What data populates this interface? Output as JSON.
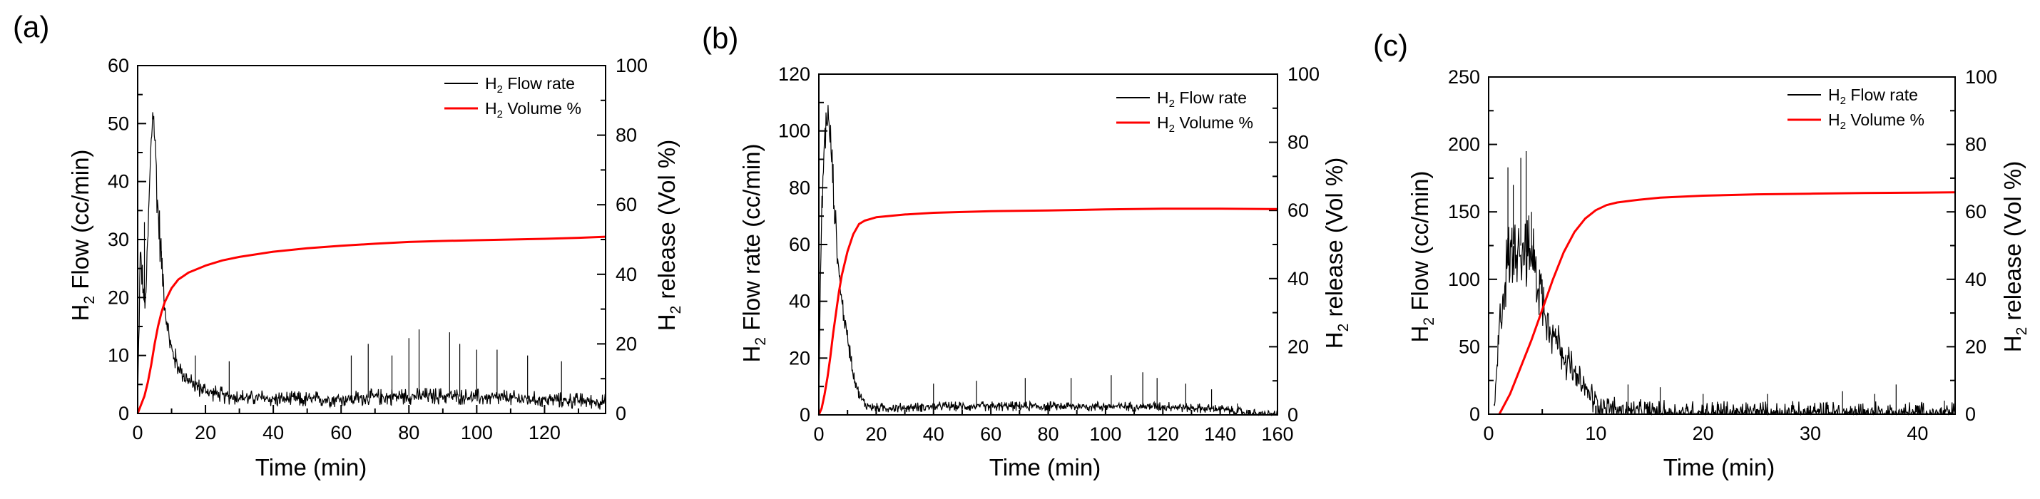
{
  "chart_data": [
    {
      "type": "line",
      "panel_label": "(a)",
      "xlabel": "Time (min)",
      "ylabel": {
        "main": "H",
        "sub": "2",
        "rest": " Flow (cc/min)"
      },
      "y2label": {
        "main": "H",
        "sub": "2",
        "rest": " release (Vol %)"
      },
      "xlim": [
        0,
        138
      ],
      "ylim": [
        0,
        60
      ],
      "y2lim": [
        0,
        100
      ],
      "xticks": [
        0,
        20,
        40,
        60,
        80,
        100,
        120
      ],
      "yticks": [
        0,
        10,
        20,
        30,
        40,
        50,
        60
      ],
      "y2ticks": [
        0,
        20,
        40,
        60,
        80,
        100
      ],
      "legend_position": "top-right",
      "series": [
        {
          "name": "H2 Flow rate",
          "legend": {
            "main": "H",
            "sub": "2",
            "rest": " Flow rate"
          },
          "color": "#000000",
          "axis": "left",
          "x": [
            0,
            0.8,
            1.5,
            2.2,
            3,
            3.8,
            4.5,
            5.2,
            6,
            7,
            8,
            9,
            10,
            12,
            15,
            18,
            22,
            26,
            30,
            40,
            50,
            60,
            70,
            80,
            90,
            100,
            110,
            120,
            130,
            138
          ],
          "y": [
            2,
            28,
            22,
            18,
            30,
            44,
            53,
            46,
            35,
            27,
            19,
            14,
            11,
            8,
            5.5,
            4.5,
            3.5,
            3,
            2.8,
            2.5,
            2.4,
            2.5,
            2.8,
            3,
            3,
            2.8,
            2.6,
            2.4,
            2.2,
            2
          ],
          "noise": 3,
          "spikes": [
            [
              2,
              33
            ],
            [
              7,
              28
            ],
            [
              17,
              10
            ],
            [
              27,
              9
            ],
            [
              63,
              10
            ],
            [
              68,
              12
            ],
            [
              75,
              10
            ],
            [
              80,
              13
            ],
            [
              83,
              14.5
            ],
            [
              92,
              14
            ],
            [
              95,
              12
            ],
            [
              100,
              11
            ],
            [
              106,
              11
            ],
            [
              115,
              10
            ],
            [
              125,
              9
            ]
          ]
        },
        {
          "name": "H2 Volume %",
          "legend": {
            "main": "H",
            "sub": "2",
            "rest": " Volume %"
          },
          "color": "#ff0000",
          "axis": "right",
          "x": [
            0,
            2,
            3,
            4,
            5,
            6,
            7,
            8,
            10,
            12,
            15,
            20,
            25,
            30,
            40,
            50,
            60,
            70,
            80,
            90,
            100,
            110,
            120,
            130,
            138
          ],
          "y": [
            0,
            5,
            9,
            14,
            20,
            25,
            29,
            32,
            36,
            38.5,
            40.5,
            42.5,
            44,
            45,
            46.5,
            47.5,
            48.2,
            48.8,
            49.3,
            49.6,
            49.8,
            50,
            50.2,
            50.5,
            50.8
          ]
        }
      ]
    },
    {
      "type": "line",
      "panel_label": "(b)",
      "xlabel": "Time (min)",
      "ylabel": {
        "main": "H",
        "sub": "2",
        "rest": " Flow rate (cc/min)"
      },
      "y2label": {
        "main": "H",
        "sub": "2",
        "rest": " release (Vol %)"
      },
      "xlim": [
        0,
        160
      ],
      "ylim": [
        0,
        120
      ],
      "y2lim": [
        0,
        100
      ],
      "xticks": [
        0,
        20,
        40,
        60,
        80,
        100,
        120,
        140,
        160
      ],
      "yticks": [
        0,
        20,
        40,
        60,
        80,
        100,
        120
      ],
      "y2ticks": [
        0,
        20,
        40,
        60,
        80,
        100
      ],
      "legend_position": "top-right",
      "series": [
        {
          "name": "H2 Flow rate",
          "legend": {
            "main": "H",
            "sub": "2",
            "rest": " Flow rate"
          },
          "color": "#000000",
          "axis": "left",
          "x": [
            0,
            0.5,
            1,
            2,
            3,
            4,
            5,
            6,
            7,
            8,
            10,
            12,
            14,
            16,
            18,
            20,
            25,
            30,
            40,
            60,
            80,
            100,
            120,
            140,
            150,
            160
          ],
          "y": [
            3,
            45,
            70,
            98,
            105,
            97,
            82,
            64,
            50,
            40,
            27,
            15,
            7,
            4,
            3,
            2.5,
            2.5,
            2.5,
            3,
            3,
            3,
            3,
            3,
            2,
            0.5,
            0
          ],
          "noise": 4,
          "spikes": [
            [
              40,
              11
            ],
            [
              55,
              12
            ],
            [
              72,
              13
            ],
            [
              88,
              13
            ],
            [
              102,
              14
            ],
            [
              113,
              15
            ],
            [
              118,
              13
            ],
            [
              128,
              11
            ],
            [
              137,
              9
            ],
            [
              146,
              4
            ]
          ]
        },
        {
          "name": "H2 Volume %",
          "legend": {
            "main": "H",
            "sub": "2",
            "rest": " Volume %"
          },
          "color": "#ff0000",
          "axis": "right",
          "x": [
            0,
            1,
            2,
            3,
            4,
            5,
            6,
            7,
            8,
            10,
            12,
            14,
            16,
            18,
            20,
            30,
            40,
            60,
            80,
            100,
            120,
            140,
            160
          ],
          "y": [
            0,
            2,
            6,
            11,
            17,
            24,
            30,
            36,
            41,
            48,
            53,
            56,
            57,
            57.5,
            58,
            58.8,
            59.3,
            59.8,
            60,
            60.3,
            60.5,
            60.5,
            60.4
          ]
        }
      ]
    },
    {
      "type": "line",
      "panel_label": "(c)",
      "xlabel": "Time (min)",
      "ylabel": {
        "main": "H",
        "sub": "2",
        "rest": " Flow (cc/min)"
      },
      "y2label": {
        "main": "H",
        "sub": "2",
        "rest": " release (Vol %)"
      },
      "xlim": [
        0,
        43.5
      ],
      "ylim": [
        0,
        250
      ],
      "y2lim": [
        0,
        100
      ],
      "xticks": [
        0,
        10,
        20,
        30,
        40
      ],
      "yticks": [
        0,
        50,
        100,
        150,
        200,
        250
      ],
      "y2ticks": [
        0,
        20,
        40,
        60,
        80,
        100
      ],
      "legend_position": "top-right",
      "series": [
        {
          "name": "H2 Flow rate",
          "legend": {
            "main": "H",
            "sub": "2",
            "rest": " Flow rate"
          },
          "color": "#000000",
          "axis": "left",
          "x": [
            0.5,
            1,
            1.5,
            2,
            2.5,
            3,
            3.5,
            4,
            4.5,
            5,
            5.5,
            6,
            7,
            8,
            9,
            10,
            11,
            12,
            14,
            16,
            20,
            25,
            30,
            35,
            40,
            43.5
          ],
          "y": [
            0,
            60,
            100,
            120,
            130,
            125,
            120,
            118,
            105,
            85,
            72,
            60,
            45,
            28,
            18,
            10,
            5,
            3,
            2,
            1.5,
            1,
            1,
            0.8,
            0.8,
            0.5,
            0.3
          ],
          "noise": 22,
          "spikes": [
            [
              1.8,
              183
            ],
            [
              2.3,
              170
            ],
            [
              3,
              190
            ],
            [
              3.5,
              195
            ],
            [
              4,
              150
            ],
            [
              13,
              22
            ],
            [
              16,
              20
            ],
            [
              20,
              15
            ],
            [
              26,
              15
            ],
            [
              33,
              17
            ],
            [
              36,
              15
            ],
            [
              38,
              22
            ],
            [
              42.5,
              10
            ]
          ]
        },
        {
          "name": "H2 Volume %",
          "legend": {
            "main": "H",
            "sub": "2",
            "rest": " Volume %"
          },
          "color": "#ff0000",
          "axis": "right",
          "x": [
            1,
            2,
            3,
            4,
            5,
            6,
            7,
            8,
            9,
            10,
            11,
            12,
            14,
            16,
            20,
            25,
            30,
            35,
            40,
            43.5
          ],
          "y": [
            0,
            6,
            14,
            22,
            31,
            40,
            48,
            54,
            58,
            60.5,
            62,
            62.8,
            63.6,
            64.2,
            64.8,
            65.2,
            65.4,
            65.6,
            65.7,
            65.8
          ]
        }
      ]
    }
  ]
}
